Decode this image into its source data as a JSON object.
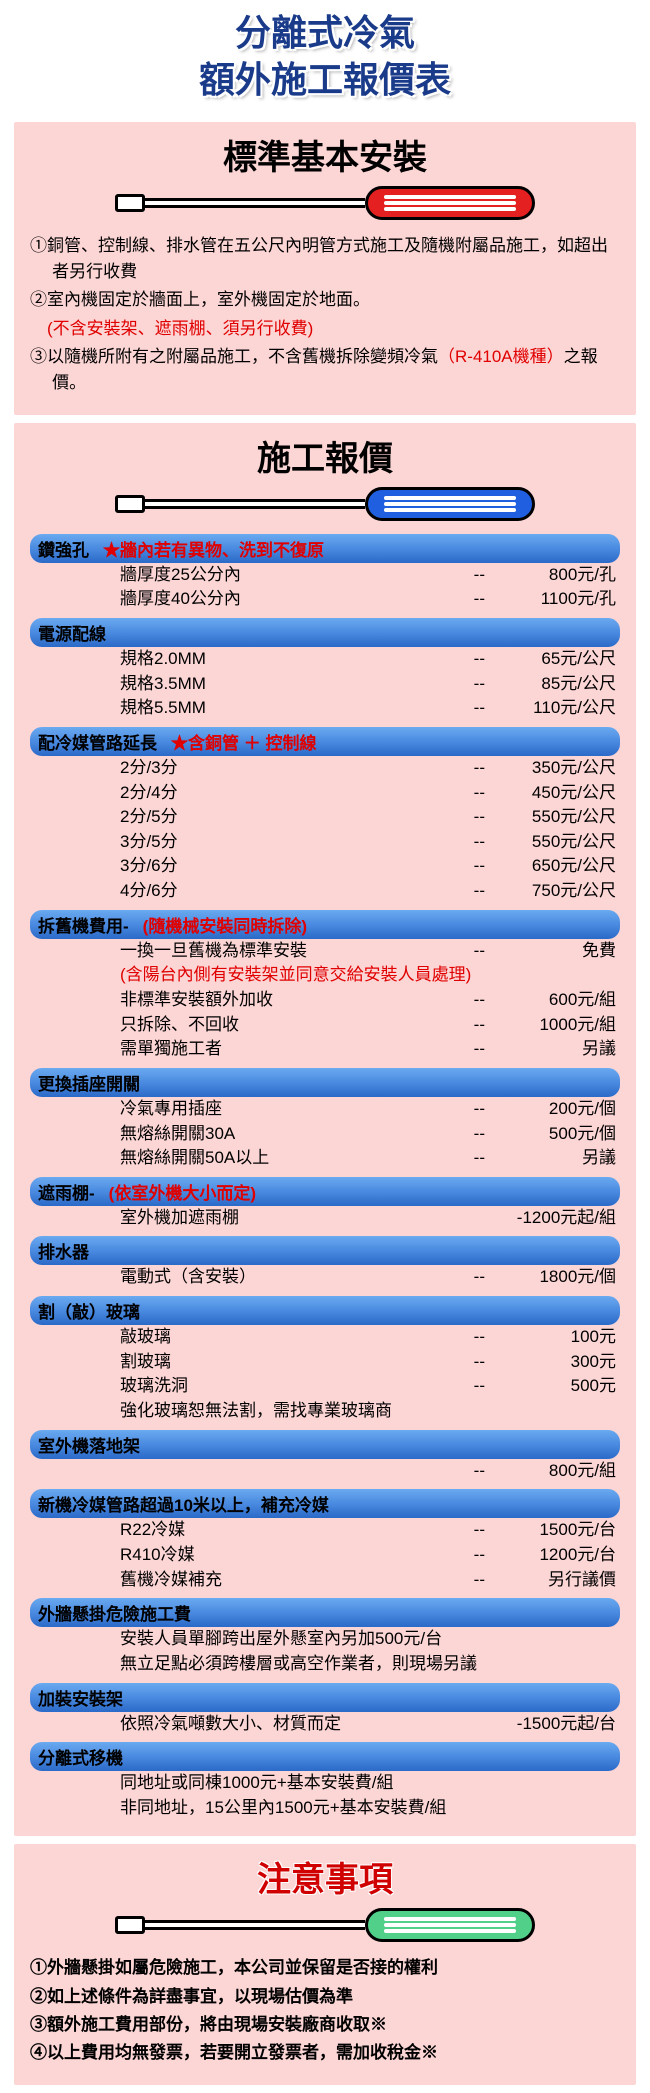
{
  "main_title_1": "分離式冷氣",
  "main_title_2": "額外施工報價表",
  "section1": {
    "title": "標準基本安裝",
    "handle_color": "#e42020",
    "lines": [
      {
        "t": "①銅管、控制線、排水管在五公尺內明管方式施工及隨機附屬品施工，如超出者另行收費",
        "red": false
      },
      {
        "t": "②室內機固定於牆面上，室外機固定於地面。",
        "red": false
      },
      {
        "t": "　(不含安裝架、遮雨棚、須另行收費)",
        "red": true
      },
      {
        "t": "③以隨機所附有之附屬品施工，不含舊機拆除變頻冷氣（R-410A機種）之報價。",
        "red": false,
        "inline_red": "（R-410A機種）"
      }
    ]
  },
  "section2": {
    "title": "施工報價",
    "handle_color": "#2060e0",
    "cats": [
      {
        "label": "鑽強孔",
        "note": "★牆內若有異物、洗到不復原",
        "rows": [
          {
            "name": "牆厚度25公分內",
            "price": "800元/孔"
          },
          {
            "name": "牆厚度40公分內",
            "price": "1100元/孔"
          }
        ]
      },
      {
        "label": "電源配線",
        "rows": [
          {
            "name": "規格2.0MM",
            "price": "65元/公尺"
          },
          {
            "name": "規格3.5MM",
            "price": "85元/公尺"
          },
          {
            "name": "規格5.5MM",
            "price": "110元/公尺"
          }
        ]
      },
      {
        "label": "配冷媒管路延長",
        "note": "★含銅管 ＋ 控制線",
        "rows": [
          {
            "name": "2分/3分",
            "price": "350元/公尺"
          },
          {
            "name": "2分/4分",
            "price": "450元/公尺"
          },
          {
            "name": "2分/5分",
            "price": "550元/公尺"
          },
          {
            "name": "3分/5分",
            "price": "550元/公尺"
          },
          {
            "name": "3分/6分",
            "price": "650元/公尺"
          },
          {
            "name": "4分/6分",
            "price": "750元/公尺"
          }
        ]
      },
      {
        "label": "拆舊機費用-",
        "label_note": "(隨機械安裝同時拆除)",
        "rows": [
          {
            "name": "一換一旦舊機為標準安裝",
            "price": "免費"
          },
          {
            "name": "(含陽台內側有安裝架並同意交給安裝人員處理)",
            "red": true,
            "noprice": true
          },
          {
            "name": "非標準安裝額外加收",
            "price": "600元/組"
          },
          {
            "name": "只拆除、不回收",
            "price": "1000元/組"
          },
          {
            "name": "需單獨施工者",
            "price": "另議"
          }
        ]
      },
      {
        "label": "更換插座開關",
        "rows": [
          {
            "name": "冷氣專用插座",
            "price": "200元/個"
          },
          {
            "name": "無熔絲開關30A",
            "price": "500元/個"
          },
          {
            "name": "無熔絲開關50A以上",
            "price": "另議"
          }
        ]
      },
      {
        "label": "遮雨棚-",
        "label_note": "(依室外機大小而定)",
        "rows": [
          {
            "name": "室外機加遮雨棚",
            "price": "-1200元起/組",
            "nodash": true
          }
        ]
      },
      {
        "label": "排水器",
        "rows": [
          {
            "name": "電動式（含安裝）",
            "price": "1800元/個"
          }
        ]
      },
      {
        "label": "割（敲）玻璃",
        "rows": [
          {
            "name": "敲玻璃",
            "price": "100元"
          },
          {
            "name": "割玻璃",
            "price": "300元"
          },
          {
            "name": "玻璃洗洞",
            "price": "500元"
          },
          {
            "name": "強化玻璃恕無法割，需找專業玻璃商",
            "noprice": true
          }
        ]
      },
      {
        "label": "室外機落地架",
        "rows": [
          {
            "name": "",
            "price": "800元/組"
          }
        ]
      },
      {
        "label": "新機冷媒管路超過10米以上，補充冷媒",
        "rows": [
          {
            "name": "R22冷媒",
            "price": "1500元/台"
          },
          {
            "name": "R410冷媒",
            "price": "1200元/台"
          },
          {
            "name": "舊機冷媒補充",
            "price": "另行議價"
          }
        ]
      },
      {
        "label": "外牆懸掛危險施工費",
        "rows": [
          {
            "name": "安裝人員單腳跨出屋外懸室內另加500元/台",
            "noprice": true
          },
          {
            "name": "無立足點必須跨樓層或高空作業者，則現場另議",
            "noprice": true
          }
        ]
      },
      {
        "label": "加裝安裝架",
        "rows": [
          {
            "name": "依照冷氣噸數大小、材質而定",
            "price": "-1500元起/台",
            "nodash": true
          }
        ]
      },
      {
        "label": "分離式移機",
        "rows": [
          {
            "name": "同地址或同棟1000元+基本安裝費/組",
            "noprice": true
          },
          {
            "name": "非同地址，15公里內1500元+基本安裝費/組",
            "noprice": true
          }
        ]
      }
    ]
  },
  "section3": {
    "title": "注意事項",
    "handle_color": "#50d088",
    "lines": [
      "①外牆懸掛如屬危險施工，本公司並保留是否接的權利",
      "②如上述條件為詳盡事宜，以現場估價為準",
      "③額外施工費用部份，將由現場安裝廠商收取※",
      "④以上費用均無發票，若要開立發票者，需加收稅金※"
    ]
  }
}
